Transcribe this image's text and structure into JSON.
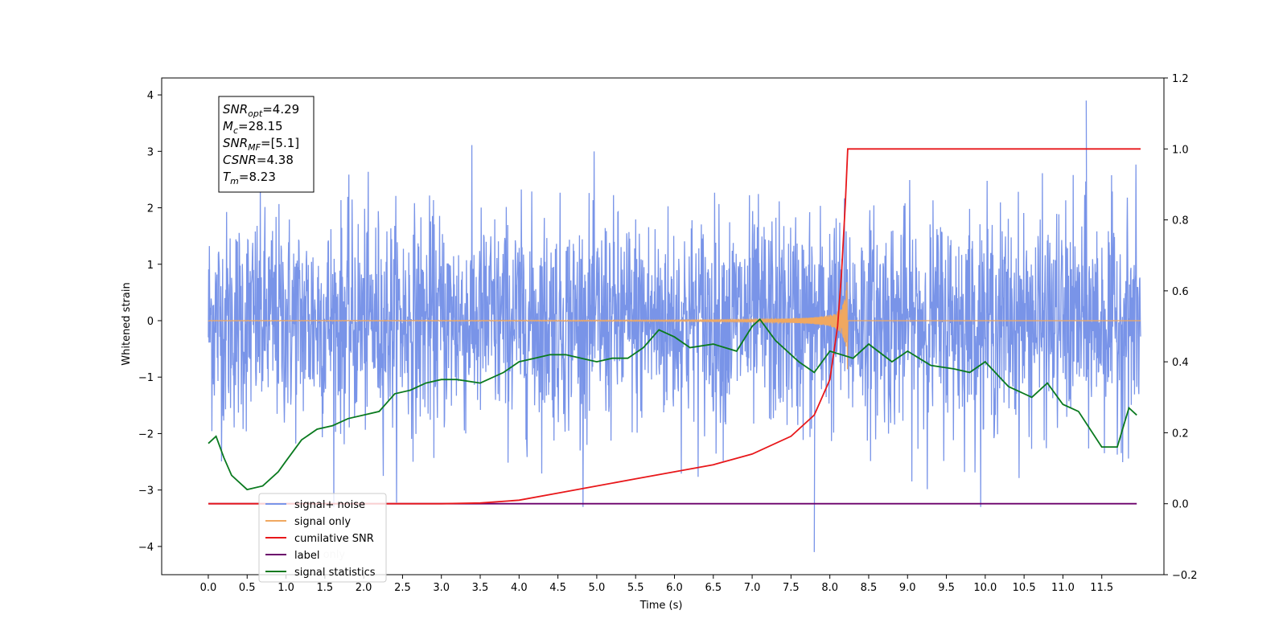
{
  "chart_data": {
    "type": "line",
    "xlabel": "Time (s)",
    "ylabel": "Whitened strain",
    "xlim": [
      -0.6,
      12.3
    ],
    "ylim": [
      -4.5,
      4.3
    ],
    "y2lim": [
      -0.2,
      1.2
    ],
    "x_ticks": [
      "0.0",
      "0.5",
      "1.0",
      "1.5",
      "2.0",
      "2.5",
      "3.0",
      "3.5",
      "4.0",
      "4.5",
      "5.0",
      "5.5",
      "6.0",
      "6.5",
      "7.0",
      "7.5",
      "8.0",
      "8.5",
      "9.0",
      "9.5",
      "10.0",
      "10.5",
      "11.0",
      "11.5"
    ],
    "y_ticks": [
      "4",
      "3",
      "2",
      "1",
      "0",
      "−1",
      "−2",
      "−3",
      "−4"
    ],
    "y2_ticks": [
      "1.2",
      "1.0",
      "0.8",
      "0.6",
      "0.4",
      "0.2",
      "0.0",
      "−0.2"
    ],
    "legend_position": "lower-left",
    "colors": {
      "signal_noise": "#7994e8",
      "signal_only": "#f0a860",
      "cumulative_snr": "#e8171a",
      "label": "#6b006b",
      "statistics": "#0a7a1f"
    },
    "series": [
      {
        "name": "signal+ noise",
        "axis": "left",
        "color": "#7994e8",
        "description_values": {
          "x_range": [
            0.0,
            12.0
          ],
          "envelope_upper": 2.6,
          "envelope_lower": -2.3,
          "max_peak": 3.9,
          "min_peak": -4.1
        }
      },
      {
        "name": "signal only",
        "axis": "left",
        "color": "#f0a860",
        "chirp": {
          "t_start": 0.0,
          "t_merger": 8.23,
          "t_end": 12.0,
          "max_amplitude": 1.1
        }
      },
      {
        "name": "cumilative SNR",
        "axis": "right",
        "color": "#e8171a",
        "x": [
          0.0,
          3.0,
          3.5,
          4.0,
          4.5,
          5.0,
          5.5,
          6.0,
          6.5,
          7.0,
          7.5,
          7.8,
          8.0,
          8.1,
          8.15,
          8.2,
          8.23,
          12.0
        ],
        "values": [
          0.0,
          0.0,
          0.002,
          0.01,
          0.03,
          0.05,
          0.07,
          0.09,
          0.11,
          0.14,
          0.19,
          0.25,
          0.35,
          0.5,
          0.65,
          0.85,
          1.0,
          1.0
        ]
      },
      {
        "name": "label",
        "axis": "right",
        "color": "#6b006b",
        "x": [
          0.0,
          11.95
        ],
        "values": [
          0.0,
          0.0
        ]
      },
      {
        "name": "signal statistics",
        "axis": "right",
        "color": "#0a7a1f",
        "x": [
          0.0,
          0.1,
          0.2,
          0.3,
          0.5,
          0.7,
          0.9,
          1.0,
          1.2,
          1.4,
          1.6,
          1.8,
          2.0,
          2.2,
          2.4,
          2.6,
          2.8,
          3.0,
          3.2,
          3.5,
          3.8,
          4.0,
          4.2,
          4.4,
          4.6,
          4.8,
          5.0,
          5.2,
          5.4,
          5.6,
          5.8,
          6.0,
          6.2,
          6.5,
          6.8,
          7.0,
          7.1,
          7.3,
          7.6,
          7.8,
          8.0,
          8.3,
          8.5,
          8.8,
          9.0,
          9.3,
          9.6,
          9.8,
          10.0,
          10.3,
          10.6,
          10.8,
          11.0,
          11.2,
          11.5,
          11.7,
          11.85,
          11.95
        ],
        "values": [
          0.17,
          0.19,
          0.13,
          0.08,
          0.04,
          0.05,
          0.09,
          0.12,
          0.18,
          0.21,
          0.22,
          0.24,
          0.25,
          0.26,
          0.31,
          0.32,
          0.34,
          0.35,
          0.35,
          0.34,
          0.37,
          0.4,
          0.41,
          0.42,
          0.42,
          0.41,
          0.4,
          0.41,
          0.41,
          0.44,
          0.49,
          0.47,
          0.44,
          0.45,
          0.43,
          0.5,
          0.52,
          0.46,
          0.4,
          0.37,
          0.43,
          0.41,
          0.45,
          0.4,
          0.43,
          0.39,
          0.38,
          0.37,
          0.4,
          0.33,
          0.3,
          0.34,
          0.28,
          0.26,
          0.16,
          0.16,
          0.27,
          0.25
        ]
      }
    ],
    "legend": [
      "signal+ noise",
      "signal only",
      "cumilative SNR",
      "label",
      "signal statistics"
    ],
    "legend_hidden_text": "label only"
  },
  "annotation": {
    "lines": [
      {
        "main": "SNR",
        "sub": "opt",
        "rest": "=4.29"
      },
      {
        "main": "M",
        "sub": "c",
        "rest": "=28.15"
      },
      {
        "main": "SNR",
        "sub": "MF",
        "rest": "=[5.1]"
      },
      {
        "main": "CSNR",
        "sub": "",
        "rest": "=4.38"
      },
      {
        "main": "T",
        "sub": "m",
        "rest": "=8.23"
      }
    ]
  }
}
